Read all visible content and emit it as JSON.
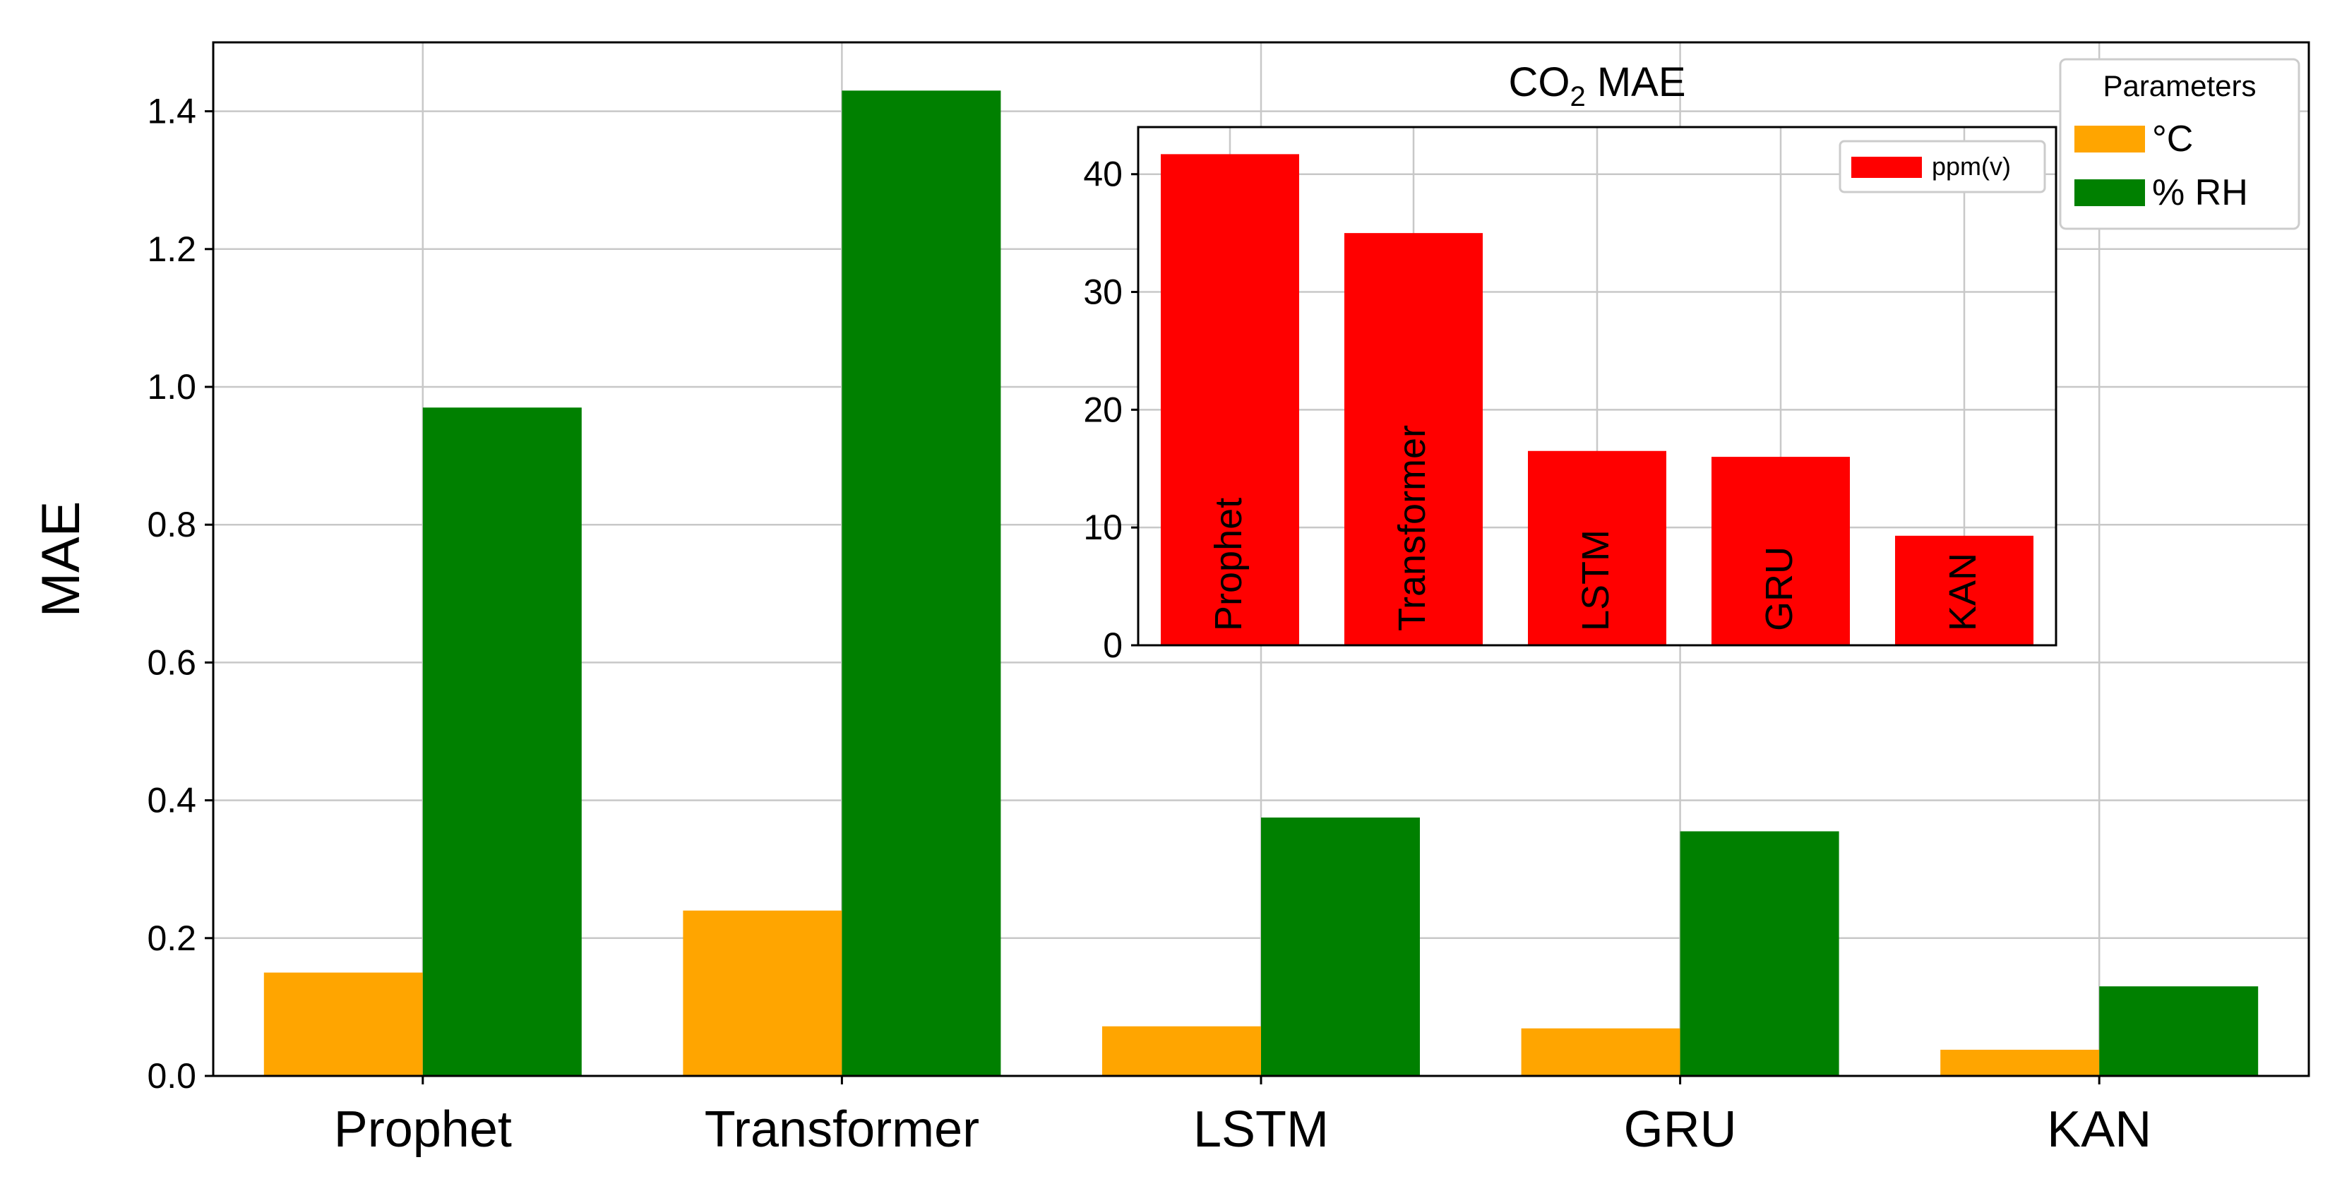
{
  "chart_data": [
    {
      "type": "bar",
      "role": "main",
      "title": "",
      "xlabel": "",
      "ylabel": "MAE",
      "categories": [
        "Prophet",
        "Transformer",
        "LSTM",
        "GRU",
        "KAN"
      ],
      "ylim": [
        0,
        1.5
      ],
      "yticks": [
        "0.0",
        "0.2",
        "0.4",
        "0.6",
        "0.8",
        "1.0",
        "1.2",
        "1.4"
      ],
      "grid": true,
      "legend": {
        "title": "Parameters",
        "placement": "top-right"
      },
      "series": [
        {
          "name": "°C",
          "color": "#FFA500",
          "values": [
            0.15,
            0.24,
            0.072,
            0.069,
            0.038
          ]
        },
        {
          "name": "% RH",
          "color": "#008000",
          "values": [
            0.97,
            1.43,
            0.375,
            0.355,
            0.13
          ]
        }
      ]
    },
    {
      "type": "bar",
      "role": "inset",
      "title": "CO",
      "title_subscript": "2",
      "title_suffix": " MAE",
      "categories": [
        "Prophet",
        "Transformer",
        "LSTM",
        "GRU",
        "KAN"
      ],
      "category_labels_inside_bars": true,
      "ylim": [
        0,
        44
      ],
      "yticks": [
        "0",
        "10",
        "20",
        "30",
        "40"
      ],
      "grid": true,
      "legend": {
        "placement": "top-right"
      },
      "series": [
        {
          "name": "ppm(v)",
          "color": "#FF0000",
          "values": [
            41.7,
            35.0,
            16.5,
            16.0,
            9.3
          ]
        }
      ]
    }
  ]
}
